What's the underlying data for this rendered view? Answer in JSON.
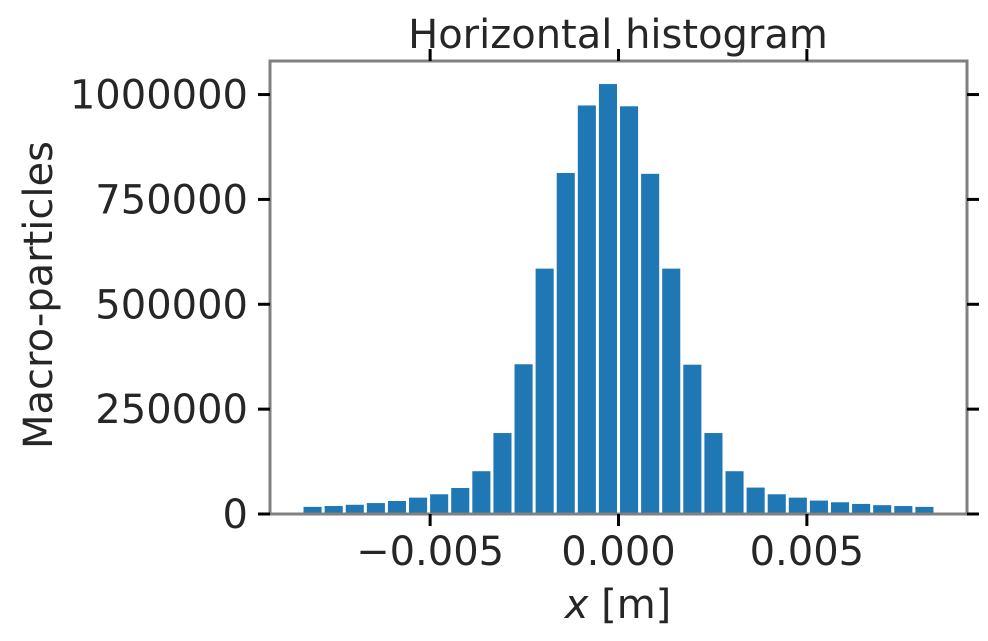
{
  "chart_data": {
    "type": "bar",
    "title": "Horizontal histogram",
    "xlabel_var": "x",
    "xlabel_unit": " [m]",
    "ylabel": "Macro-particles",
    "xlim": [
      -0.00925,
      0.00925
    ],
    "ylim": [
      0,
      1080000
    ],
    "xticks": [
      -0.005,
      0.0,
      0.005
    ],
    "xtick_labels": [
      "−0.005",
      "0.000",
      "0.005"
    ],
    "yticks": [
      0,
      250000,
      500000,
      750000,
      1000000
    ],
    "ytick_labels": [
      "0",
      "250000",
      "500000",
      "750000",
      "1000000"
    ],
    "bar_width": 0.00048,
    "bar_color": "#1f77b4",
    "frame_color": "#808080",
    "grid": false,
    "x": [
      -0.00812,
      -0.00756,
      -0.007,
      -0.00644,
      -0.00588,
      -0.00532,
      -0.00476,
      -0.0042,
      -0.00364,
      -0.00308,
      -0.00252,
      -0.00196,
      -0.0014,
      -0.00084,
      -0.00028,
      0.00028,
      0.00084,
      0.0014,
      0.00196,
      0.00252,
      0.00308,
      0.00364,
      0.0042,
      0.00476,
      0.00532,
      0.00588,
      0.00644,
      0.007,
      0.00756,
      0.00812
    ],
    "values": [
      17000,
      19000,
      22000,
      26000,
      31000,
      39000,
      47000,
      62000,
      102000,
      193000,
      357000,
      585000,
      813000,
      974000,
      1025000,
      972000,
      811000,
      585000,
      356000,
      193000,
      102000,
      63000,
      47000,
      39000,
      32000,
      28000,
      24000,
      21000,
      19000,
      17000
    ]
  }
}
